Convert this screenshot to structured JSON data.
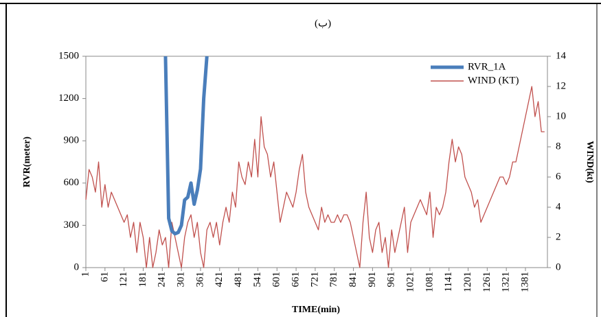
{
  "chart_data": {
    "type": "line",
    "title": "(ب)",
    "x_label": "TIME(min)",
    "y_label": "RVR(meter)",
    "y2_label": "WIND(kt)",
    "x": [
      1,
      11,
      21,
      31,
      41,
      51,
      61,
      71,
      81,
      91,
      101,
      111,
      121,
      131,
      141,
      151,
      161,
      171,
      181,
      191,
      201,
      211,
      221,
      231,
      241,
      251,
      261,
      271,
      281,
      291,
      301,
      311,
      321,
      331,
      341,
      351,
      361,
      371,
      381,
      391,
      401,
      411,
      421,
      431,
      441,
      451,
      461,
      471,
      481,
      491,
      501,
      511,
      521,
      531,
      541,
      551,
      561,
      571,
      581,
      591,
      601,
      611,
      621,
      631,
      641,
      651,
      661,
      671,
      681,
      691,
      701,
      711,
      721,
      731,
      741,
      751,
      761,
      771,
      781,
      791,
      801,
      811,
      821,
      831,
      841,
      851,
      861,
      871,
      881,
      891,
      901,
      911,
      921,
      931,
      941,
      951,
      961,
      971,
      981,
      991,
      1001,
      1011,
      1021,
      1031,
      1041,
      1051,
      1061,
      1071,
      1081,
      1091,
      1101,
      1111,
      1121,
      1131,
      1141,
      1151,
      1161,
      1171,
      1181,
      1191,
      1201,
      1211,
      1221,
      1231,
      1241,
      1251,
      1261,
      1271,
      1281,
      1291,
      1301,
      1311,
      1321,
      1331,
      1341,
      1351,
      1361,
      1371,
      1381,
      1391,
      1401,
      1411,
      1421,
      1431,
      1441
    ],
    "series": [
      {
        "name": "RVR_1A",
        "color": "#4a7ebb",
        "axis": "y",
        "values": [
          null,
          null,
          null,
          null,
          null,
          null,
          null,
          null,
          null,
          null,
          null,
          null,
          null,
          null,
          null,
          null,
          null,
          null,
          null,
          null,
          null,
          null,
          null,
          null,
          null,
          1500,
          350,
          260,
          240,
          250,
          300,
          480,
          500,
          600,
          450,
          550,
          700,
          1200,
          1500,
          null,
          null,
          null,
          null,
          null,
          null,
          null,
          null,
          null,
          null,
          null,
          null,
          null,
          null,
          null,
          null,
          null,
          null,
          null,
          null,
          null,
          null,
          null,
          null,
          null,
          null,
          null,
          null,
          null,
          null,
          null,
          null,
          null,
          null,
          null,
          null,
          null,
          null,
          null,
          null,
          null,
          null,
          null,
          null,
          null,
          null,
          null,
          null,
          null,
          null,
          null,
          null,
          null,
          null,
          null,
          null,
          null,
          null,
          null,
          null,
          null,
          null,
          null,
          null,
          null,
          null,
          null,
          null,
          null,
          null,
          null,
          null,
          null,
          null,
          null,
          null,
          null,
          null,
          null,
          null,
          null,
          null,
          null,
          null,
          null,
          null,
          null,
          null,
          null,
          null,
          null,
          null,
          null,
          null,
          null,
          null,
          null,
          null,
          null,
          null,
          null,
          null,
          null,
          null,
          null,
          null
        ]
      },
      {
        "name": "WIND (KT)",
        "color": "#c0504d",
        "axis": "y2",
        "values": [
          4.5,
          6.5,
          6,
          5,
          7,
          4,
          5.5,
          4,
          5,
          4.5,
          4,
          3.5,
          3,
          3.5,
          2,
          3,
          1,
          3,
          2,
          0,
          2,
          0,
          1,
          2.5,
          1.5,
          2,
          0,
          3,
          2,
          1,
          0,
          2,
          3,
          3.5,
          2,
          3,
          1,
          0,
          2.5,
          3,
          2,
          3,
          1.5,
          3,
          4,
          3,
          5,
          4,
          7,
          6,
          5.5,
          7,
          6,
          8.5,
          6,
          10,
          8,
          7.5,
          6,
          7,
          5,
          3,
          4,
          5,
          4.5,
          4,
          5,
          6.5,
          7.5,
          5,
          4,
          3.5,
          3,
          2.5,
          4,
          3,
          3.5,
          3,
          3,
          3.5,
          3,
          3.5,
          3.5,
          3,
          2,
          1,
          0,
          3,
          5,
          2,
          1,
          2.5,
          3,
          1,
          2,
          0,
          2.5,
          1,
          2,
          3,
          4,
          1,
          3,
          3.5,
          4,
          4.5,
          4,
          3.5,
          5,
          2,
          4,
          3.5,
          4,
          5,
          7,
          8.5,
          7,
          8,
          7.5,
          6,
          5.5,
          5,
          4,
          4.5,
          3,
          3.5,
          4,
          4.5,
          5,
          5.5,
          6,
          6,
          5.5,
          6,
          7,
          7,
          8,
          9,
          10,
          11,
          12,
          10,
          11,
          9,
          9
        ]
      }
    ],
    "xlim": [
      1,
      1450
    ],
    "xticks": [
      1,
      61,
      121,
      181,
      241,
      301,
      361,
      421,
      481,
      541,
      601,
      661,
      721,
      781,
      841,
      901,
      961,
      1021,
      1081,
      1141,
      1201,
      1261,
      1321,
      1381
    ],
    "ylim": [
      0,
      1500
    ],
    "yticks": [
      0,
      300,
      600,
      900,
      1200,
      1500
    ],
    "y2lim": [
      0,
      14
    ],
    "y2ticks": [
      0,
      2,
      4,
      6,
      8,
      10,
      12,
      14
    ],
    "legend": "top-right"
  }
}
